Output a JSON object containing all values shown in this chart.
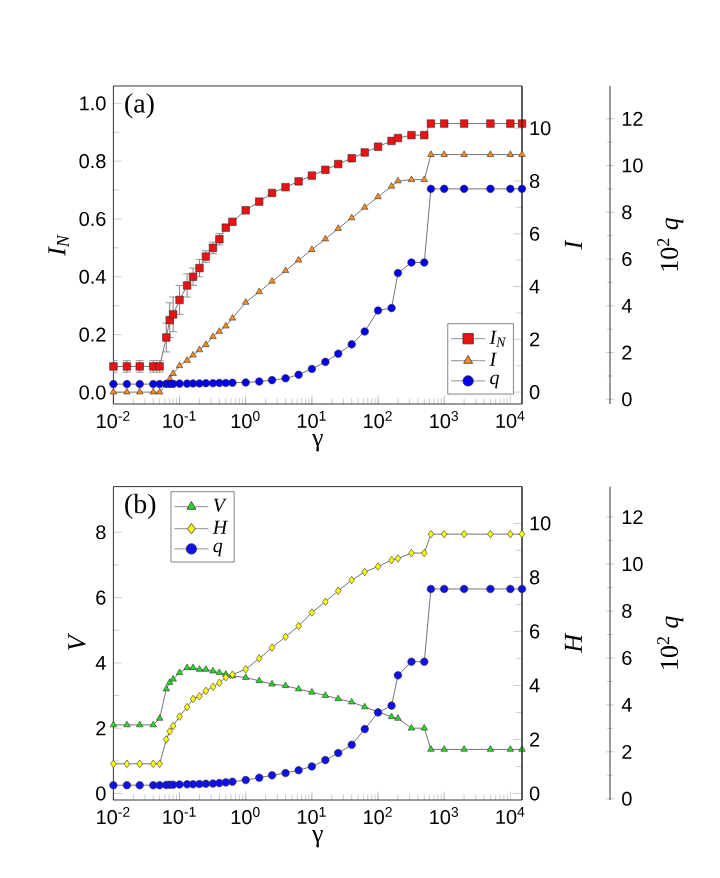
{
  "chart_data": [
    {
      "type": "line",
      "annotations": [
        "(a)"
      ],
      "xlabel": "γ",
      "ylabel": "I$_{N}$",
      "y2label": "I",
      "y3label": "10$^{2}$ *q*",
      "log": "x",
      "legend": "bottom right",
      "line_style": "solid",
      "xlim": [
        0.01,
        15000
      ],
      "xticks": [
        {
          "value": 0.01,
          "label": "10$^{-2}$"
        },
        {
          "value": 0.1,
          "label": "10$^{-1}$"
        },
        {
          "value": 1,
          "label": "10$^{0}$"
        },
        {
          "value": 10,
          "label": "10$^{1}$"
        },
        {
          "value": 100,
          "label": "10$^{2}$"
        },
        {
          "value": 1000,
          "label": "10$^{3}$"
        },
        {
          "value": 10000,
          "label": "10$^{4}$"
        }
      ],
      "ylim": [
        -0.04,
        1.06
      ],
      "yticks": [
        {
          "value": 0,
          "label": "0.0"
        },
        0.2,
        0.4,
        0.6,
        0.8,
        {
          "value": 1,
          "label": "1.0"
        }
      ],
      "y2lim": [
        -0.45,
        11.6
      ],
      "y2ticks": [
        0,
        2,
        4,
        6,
        8,
        10
      ],
      "y3lim": [
        -0.2,
        13.4
      ],
      "y3ticks": [
        0,
        2,
        4,
        6,
        8,
        10,
        12
      ],
      "x": [
        0.01,
        0.016,
        0.025,
        0.04,
        0.05,
        0.063,
        0.071,
        0.08,
        0.1,
        0.13,
        0.16,
        0.2,
        0.25,
        0.32,
        0.4,
        0.5,
        0.63,
        1,
        1.6,
        2.5,
        4,
        6.3,
        10,
        16,
        25,
        40,
        63,
        100,
        160,
        200,
        320,
        500,
        630,
        1000,
        2000,
        5000,
        10000,
        15000
      ],
      "series": [
        {
          "name": "I$_{N}$",
          "color": "#ee1111",
          "marker": "square",
          "values": [
            0.09,
            0.09,
            0.09,
            0.09,
            0.09,
            0.19,
            0.25,
            0.27,
            0.32,
            0.37,
            0.4,
            0.43,
            0.47,
            0.5,
            0.53,
            0.57,
            0.59,
            0.63,
            0.66,
            0.69,
            0.71,
            0.73,
            0.75,
            0.77,
            0.79,
            0.81,
            0.83,
            0.85,
            0.87,
            0.88,
            0.89,
            0.89,
            0.93,
            0.93,
            0.93,
            0.93,
            0.93,
            0.93
          ],
          "errors": [
            0.02,
            0.02,
            0.02,
            0.02,
            0.02,
            0.05,
            0.06,
            0.06,
            0.05,
            0.04,
            0.03,
            0.03,
            0.02,
            0.02,
            0.02,
            0.01,
            null,
            null,
            null,
            null,
            null,
            null,
            null,
            null,
            null,
            null,
            null,
            null,
            null,
            null,
            null,
            null,
            null,
            null,
            null,
            null,
            null,
            null
          ]
        },
        {
          "name": "I",
          "color": "#ff8c1a",
          "marker": "triangle",
          "axis": "y2",
          "values": [
            0.0,
            0.0,
            0.0,
            0.0,
            0.0,
            0.3,
            0.5,
            0.7,
            1.0,
            1.2,
            1.4,
            1.6,
            1.8,
            2.1,
            2.3,
            2.5,
            2.8,
            3.4,
            3.8,
            4.2,
            4.6,
            5.0,
            5.4,
            5.8,
            6.2,
            6.6,
            7.0,
            7.4,
            7.8,
            8.0,
            8.05,
            8.05,
            9.0,
            9.0,
            9.0,
            9.0,
            9.0,
            9.0
          ]
        },
        {
          "name": "q",
          "color": "#0000ee",
          "marker": "circle",
          "axis": "y3",
          "values": [
            0.65,
            0.65,
            0.65,
            0.65,
            0.65,
            0.66,
            0.66,
            0.66,
            0.67,
            0.67,
            0.68,
            0.68,
            0.69,
            0.69,
            0.7,
            0.7,
            0.71,
            0.72,
            0.76,
            0.82,
            0.9,
            1.05,
            1.3,
            1.6,
            1.95,
            2.35,
            2.9,
            3.8,
            3.9,
            5.4,
            5.85,
            5.85,
            9.0,
            9.0,
            9.0,
            9.0,
            9.0,
            9.0
          ]
        }
      ]
    },
    {
      "type": "line",
      "annotations": [
        "(b)"
      ],
      "xlabel": "γ",
      "ylabel": "V",
      "y2label": "H",
      "y3label": "10$^{2}$ *q*",
      "log": "x",
      "legend": "top left",
      "line_style": "solid",
      "xlim": [
        0.01,
        15000
      ],
      "xticks": [
        {
          "value": 0.01,
          "label": "10$^{-2}$"
        },
        {
          "value": 0.1,
          "label": "10$^{-1}$"
        },
        {
          "value": 1,
          "label": "10$^{0}$"
        },
        {
          "value": 10,
          "label": "10$^{1}$"
        },
        {
          "value": 100,
          "label": "10$^{2}$"
        },
        {
          "value": 1000,
          "label": "10$^{3}$"
        },
        {
          "value": 10000,
          "label": "10$^{4}$"
        }
      ],
      "ylim": [
        -0.2,
        9.4
      ],
      "yticks": [
        0,
        2,
        4,
        6,
        8
      ],
      "y2lim": [
        -0.24,
        11.36
      ],
      "y2ticks": [
        0,
        2,
        4,
        6,
        8,
        10
      ],
      "y3lim": [
        -0.05,
        13.3
      ],
      "y3ticks": [
        0,
        2,
        4,
        6,
        8,
        10,
        12
      ],
      "x": [
        0.01,
        0.016,
        0.025,
        0.04,
        0.05,
        0.063,
        0.071,
        0.08,
        0.1,
        0.13,
        0.16,
        0.2,
        0.25,
        0.32,
        0.4,
        0.5,
        0.63,
        1,
        1.6,
        2.5,
        4,
        6.3,
        10,
        16,
        25,
        40,
        63,
        100,
        160,
        200,
        320,
        500,
        630,
        1000,
        2000,
        5000,
        10000,
        15000
      ],
      "series": [
        {
          "name": "V",
          "color": "#22dd22",
          "marker": "triangle",
          "values": [
            2.1,
            2.1,
            2.1,
            2.1,
            2.3,
            3.2,
            3.4,
            3.5,
            3.7,
            3.85,
            3.85,
            3.8,
            3.8,
            3.75,
            3.7,
            3.65,
            3.6,
            3.55,
            3.45,
            3.35,
            3.3,
            3.2,
            3.1,
            3.0,
            2.9,
            2.8,
            2.65,
            2.5,
            2.35,
            2.3,
            2.0,
            2.0,
            1.35,
            1.35,
            1.35,
            1.35,
            1.35,
            1.35
          ]
        },
        {
          "name": "H",
          "color": "#ffff00",
          "marker": "diamond",
          "axis": "y2",
          "values": [
            1.1,
            1.1,
            1.1,
            1.1,
            1.1,
            2.0,
            2.3,
            2.5,
            2.85,
            3.2,
            3.5,
            3.6,
            3.8,
            3.95,
            4.1,
            4.3,
            4.4,
            4.6,
            5.0,
            5.4,
            5.8,
            6.2,
            6.7,
            7.1,
            7.5,
            7.9,
            8.2,
            8.4,
            8.64,
            8.7,
            8.9,
            8.9,
            9.6,
            9.6,
            9.6,
            9.6,
            9.6,
            9.6
          ]
        },
        {
          "name": "q",
          "color": "#1010ee",
          "marker": "circle",
          "axis": "y3",
          "values": [
            0.58,
            0.58,
            0.58,
            0.58,
            0.58,
            0.59,
            0.6,
            0.6,
            0.61,
            0.62,
            0.62,
            0.63,
            0.64,
            0.65,
            0.67,
            0.7,
            0.73,
            0.8,
            0.9,
            1.0,
            1.1,
            1.22,
            1.38,
            1.65,
            1.95,
            2.3,
            2.97,
            3.68,
            3.97,
            5.26,
            5.84,
            5.84,
            8.94,
            8.94,
            8.94,
            8.94,
            8.94,
            8.94
          ]
        }
      ]
    }
  ]
}
